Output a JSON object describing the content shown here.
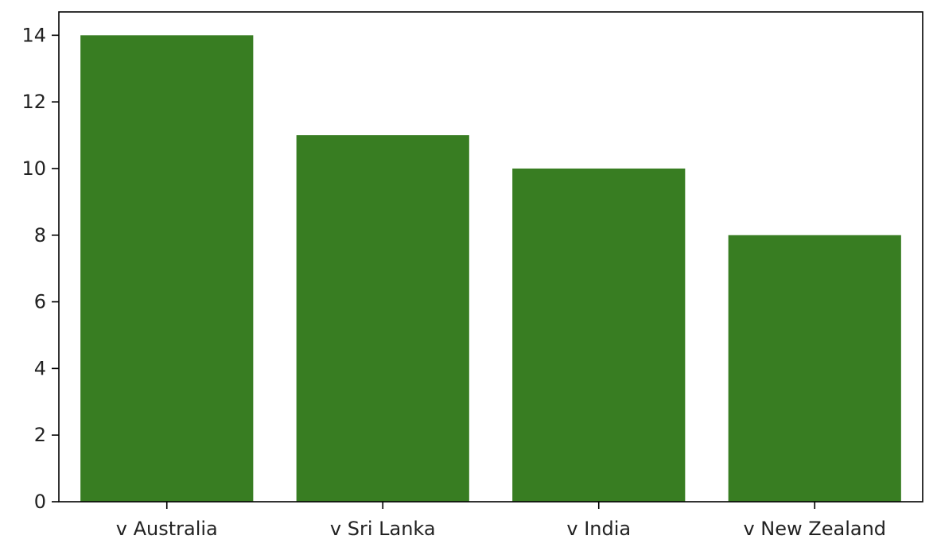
{
  "chart_data": {
    "type": "bar",
    "categories": [
      "v Australia",
      "v Sri Lanka",
      "v India",
      "v New Zealand"
    ],
    "values": [
      14,
      11,
      10,
      8
    ],
    "title": "",
    "xlabel": "",
    "ylabel": "",
    "ylim": [
      0,
      14.7
    ],
    "yticks": [
      0,
      2,
      4,
      6,
      8,
      10,
      12,
      14
    ],
    "grid": false,
    "bar_color": "#387d22",
    "axis_color": "#000000"
  }
}
